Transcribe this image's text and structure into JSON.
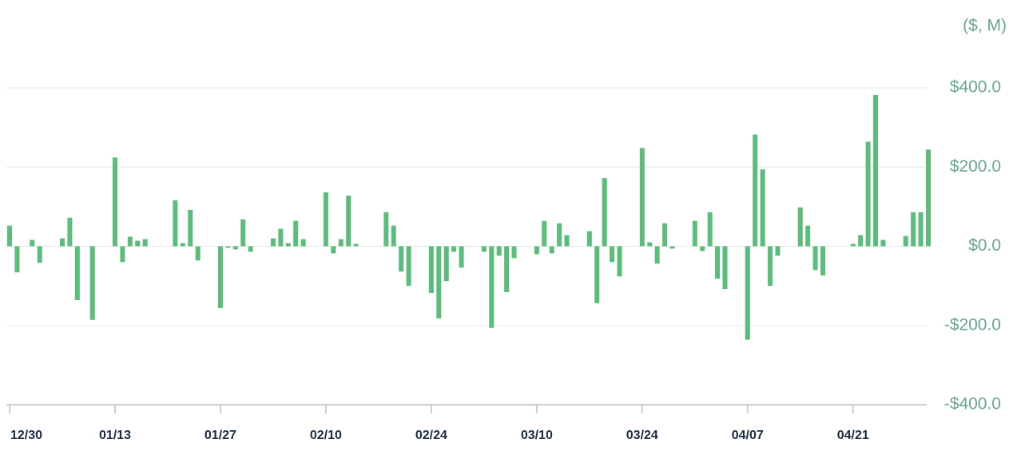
{
  "chart_data": {
    "type": "bar",
    "y_label": "($, M)",
    "color": "#5bbd7b",
    "grid": true,
    "ylim": [
      -400,
      400
    ],
    "yticks": [
      {
        "value": -400,
        "label": "-$400.0"
      },
      {
        "value": -200,
        "label": "-$200.0"
      },
      {
        "value": 0,
        "label": "$0.0"
      },
      {
        "value": 200,
        "label": "$200.0"
      },
      {
        "value": 400,
        "label": "$400.0"
      }
    ],
    "categories": [
      "12/30",
      null,
      null,
      null,
      null,
      null,
      null,
      null,
      null,
      null,
      null,
      null,
      null,
      null,
      "01/13",
      null,
      null,
      null,
      null,
      null,
      null,
      null,
      null,
      null,
      null,
      null,
      null,
      null,
      "01/27",
      null,
      null,
      null,
      null,
      null,
      null,
      null,
      null,
      null,
      null,
      null,
      null,
      null,
      "02/10",
      null,
      null,
      null,
      null,
      null,
      null,
      null,
      null,
      null,
      null,
      null,
      null,
      null,
      "02/24",
      null,
      null,
      null,
      null,
      null,
      null,
      null,
      null,
      null,
      null,
      null,
      null,
      null,
      "03/10",
      null,
      null,
      null,
      null,
      null,
      null,
      null,
      null,
      null,
      null,
      null,
      null,
      null,
      "03/24",
      null,
      null,
      null,
      null,
      null,
      null,
      null,
      null,
      null,
      null,
      null,
      null,
      null,
      "04/07",
      null,
      null,
      null,
      null,
      null,
      null,
      null,
      null,
      null,
      null,
      null,
      null,
      null,
      "04/21",
      null,
      null,
      null,
      null,
      null,
      null,
      null,
      null,
      null,
      null
    ],
    "values": [
      52,
      -66,
      null,
      16,
      -42,
      null,
      null,
      20,
      72,
      -136,
      null,
      -186,
      null,
      null,
      224,
      -40,
      24,
      14,
      18,
      null,
      null,
      null,
      116,
      8,
      92,
      -36,
      null,
      null,
      -156,
      -4,
      -8,
      68,
      -14,
      null,
      null,
      20,
      44,
      8,
      64,
      18,
      null,
      null,
      136,
      -18,
      18,
      128,
      6,
      null,
      null,
      null,
      86,
      52,
      -64,
      -100,
      null,
      null,
      -118,
      -182,
      -88,
      -14,
      -54,
      null,
      null,
      -14,
      -206,
      -24,
      -116,
      -30,
      null,
      null,
      -20,
      64,
      -18,
      58,
      28,
      null,
      null,
      38,
      -144,
      172,
      -40,
      -76,
      null,
      null,
      248,
      10,
      -44,
      58,
      -6,
      null,
      null,
      64,
      -12,
      86,
      -82,
      -108,
      null,
      null,
      -236,
      282,
      194,
      -100,
      -24,
      null,
      null,
      98,
      52,
      -60,
      -74,
      null,
      null,
      null,
      6,
      28,
      264,
      382,
      16,
      null,
      null,
      26,
      86,
      86,
      244
    ]
  }
}
